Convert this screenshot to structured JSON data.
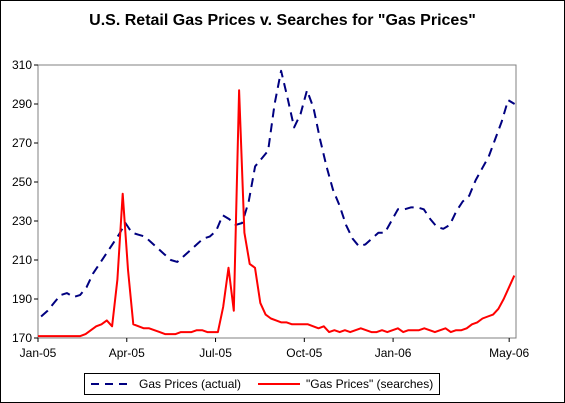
{
  "chart_data": {
    "type": "line",
    "title": "U.S. Retail Gas Prices v. Searches for \"Gas Prices\"",
    "xlabel": "",
    "ylabel": "",
    "ylim": [
      170,
      310
    ],
    "yticks": [
      170,
      190,
      210,
      230,
      250,
      270,
      290,
      310
    ],
    "x_tick_labels": [
      "Jan-05",
      "Apr-05",
      "Jul-05",
      "Oct-05",
      "Jan-06",
      "May-06"
    ],
    "x_tick_weeks": [
      0,
      13,
      26,
      39,
      52,
      69
    ],
    "x_range": [
      0,
      70
    ],
    "grid": false,
    "legend": "bottom",
    "series": [
      {
        "name": "Gas Prices (actual)",
        "color": "#000080",
        "style": "dashed",
        "values": [
          178,
          181,
          184,
          188,
          192,
          193,
          191,
          192,
          196,
          203,
          208,
          213,
          218,
          223,
          229,
          224,
          223,
          222,
          219,
          216,
          213,
          210,
          209,
          212,
          215,
          218,
          221,
          222,
          225,
          233,
          231,
          228,
          229,
          240,
          258,
          262,
          266,
          290,
          307,
          293,
          278,
          285,
          297,
          288,
          272,
          258,
          246,
          238,
          228,
          221,
          217,
          218,
          221,
          224,
          224,
          230,
          236,
          236,
          237,
          237,
          236,
          231,
          227,
          226,
          228,
          235,
          240,
          243,
          251,
          257,
          263,
          272,
          281,
          292,
          290,
          288
        ],
        "x_start": -0.5,
        "x_step": 0.95
      },
      {
        "name": "\"Gas Prices\" (searches)",
        "color": "#ff0000",
        "style": "solid",
        "values": [
          171,
          171,
          171,
          171,
          171,
          171,
          171,
          171,
          171,
          172,
          174,
          176,
          177,
          179,
          176,
          200,
          244,
          205,
          177,
          176,
          175,
          175,
          174,
          173,
          172,
          172,
          172,
          173,
          173,
          173,
          174,
          174,
          173,
          173,
          173,
          186,
          206,
          184,
          297,
          224,
          208,
          206,
          188,
          182,
          180,
          179,
          178,
          178,
          177,
          177,
          177,
          177,
          176,
          175,
          176,
          173,
          174,
          173,
          174,
          173,
          174,
          175,
          174,
          173,
          173,
          174,
          173,
          174,
          175,
          173,
          174,
          174,
          174,
          175,
          174,
          173,
          174,
          175,
          173,
          174,
          174,
          175,
          177,
          178,
          180,
          181,
          182,
          185,
          190,
          196,
          202,
          189
        ],
        "x_start": 0,
        "x_step": 0.775
      }
    ]
  }
}
